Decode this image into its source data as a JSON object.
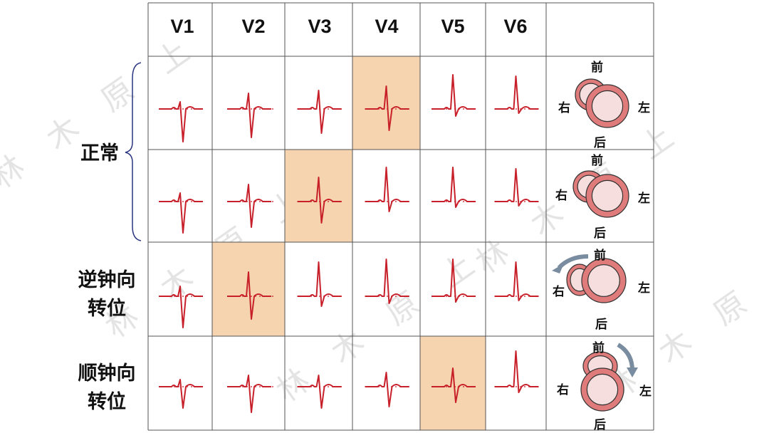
{
  "columns": [
    "V1",
    "V2",
    "V3",
    "V4",
    "V5",
    "V6"
  ],
  "rows": [
    {
      "label": "正常",
      "transition_lead": "V4",
      "direction": {
        "front": "前",
        "back": "后",
        "left": "左",
        "right": "右"
      }
    },
    {
      "label": "",
      "transition_lead": "V3",
      "direction": {
        "front": "前",
        "back": "后",
        "left": "左",
        "right": "右"
      }
    },
    {
      "label": "逆钟向转位",
      "label_lines": [
        "逆钟向",
        "转位"
      ],
      "transition_lead": "V2",
      "direction": {
        "front": "前",
        "back": "后",
        "left": "左",
        "right": "右"
      }
    },
    {
      "label": "顺钟向转位",
      "label_lines": [
        "顺钟向",
        "转位"
      ],
      "transition_lead": "V5",
      "direction": {
        "front": "前",
        "back": "后",
        "left": "左",
        "right": "右"
      }
    }
  ],
  "normal_label": "正常",
  "ccw_label": [
    "逆钟向",
    "转位"
  ],
  "cw_label": [
    "顺钟向",
    "转位"
  ],
  "watermark_text": "林 木 原 上",
  "colors": {
    "ecg": "#c8202a",
    "highlight": "#f6d4b0",
    "grid": "#555555",
    "ring_outer": "#e07b7b",
    "ring_inner": "#f7dede",
    "brace": "#2a3580",
    "arrow": "#7a8da0"
  }
}
